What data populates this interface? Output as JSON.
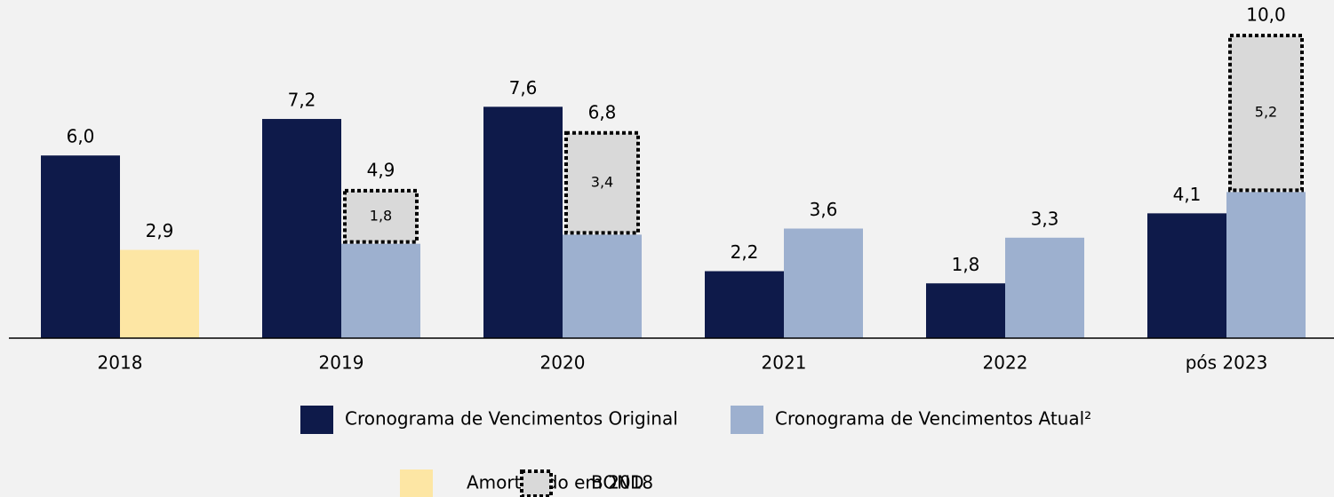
{
  "chart_data": {
    "type": "bar",
    "categories": [
      "2018",
      "2019",
      "2020",
      "2021",
      "2022",
      "pós 2023"
    ],
    "ylim": [
      0,
      10
    ],
    "series": [
      {
        "name": "Cronograma de Vencimentos Original",
        "color": "#0e1a4a",
        "group": 0,
        "values": [
          6.0,
          7.2,
          7.6,
          2.2,
          1.8,
          4.1
        ],
        "value_labels": [
          "6,0",
          "7,2",
          "7,6",
          "2,2",
          "1,8",
          "4,1"
        ]
      },
      {
        "name": "Cronograma de Vencimentos Atual²",
        "color": "#9db0cf",
        "group": 1,
        "values": [
          null,
          3.1,
          3.4,
          3.6,
          3.3,
          4.8
        ]
      },
      {
        "name": "Amortizado em 2018",
        "color": "#fde6a4",
        "group": 1,
        "values": [
          2.9,
          null,
          null,
          null,
          null,
          null
        ],
        "value_labels": [
          "2,9",
          null,
          null,
          null,
          null,
          null
        ]
      },
      {
        "name": "BOND",
        "color": "#d9d9d9",
        "group": 1,
        "dashed": true,
        "values": [
          null,
          1.8,
          3.4,
          null,
          null,
          5.2
        ],
        "value_labels": [
          null,
          "1,8",
          "3,4",
          null,
          null,
          "5,2"
        ]
      }
    ],
    "totals": [
      null,
      4.9,
      6.8,
      3.6,
      3.3,
      10.0
    ],
    "total_labels": [
      null,
      "4,9",
      "6,8",
      "3,6",
      "3,3",
      "10,0"
    ]
  }
}
